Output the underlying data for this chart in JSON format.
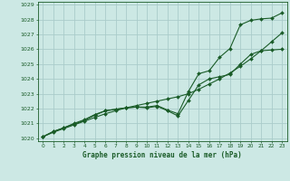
{
  "title": "Graphe pression niveau de la mer (hPa)",
  "xlim": [
    -0.5,
    23.5
  ],
  "ylim": [
    1019.8,
    1029.2
  ],
  "xticks": [
    0,
    1,
    2,
    3,
    4,
    5,
    6,
    7,
    8,
    9,
    10,
    11,
    12,
    13,
    14,
    15,
    16,
    17,
    18,
    19,
    20,
    21,
    22,
    23
  ],
  "yticks": [
    1020,
    1021,
    1022,
    1023,
    1024,
    1025,
    1026,
    1027,
    1028,
    1029
  ],
  "bg_color": "#cce8e4",
  "grid_color": "#aaccca",
  "line_color": "#1a5c28",
  "series_straight": {
    "x": [
      0,
      1,
      2,
      3,
      4,
      5,
      6,
      7,
      8,
      9,
      10,
      11,
      12,
      13,
      14,
      15,
      16,
      17,
      18,
      19,
      20,
      21,
      22,
      23
    ],
    "y": [
      1020.1,
      1020.4,
      1020.65,
      1020.9,
      1021.15,
      1021.4,
      1021.65,
      1021.85,
      1022.05,
      1022.2,
      1022.35,
      1022.5,
      1022.65,
      1022.8,
      1023.0,
      1023.3,
      1023.65,
      1024.0,
      1024.4,
      1024.85,
      1025.35,
      1025.9,
      1026.5,
      1027.1
    ]
  },
  "series_dip": {
    "x": [
      0,
      1,
      2,
      3,
      4,
      5,
      6,
      7,
      8,
      9,
      10,
      11,
      12,
      13,
      14,
      15,
      16,
      17,
      18,
      19,
      20,
      21,
      22,
      23
    ],
    "y": [
      1020.1,
      1020.45,
      1020.7,
      1020.95,
      1021.2,
      1021.55,
      1021.85,
      1021.95,
      1022.05,
      1022.1,
      1022.05,
      1022.15,
      1021.85,
      1021.5,
      1022.55,
      1023.6,
      1024.0,
      1024.15,
      1024.3,
      1025.0,
      1025.65,
      1025.9,
      1025.95,
      1026.0
    ]
  },
  "series_top": {
    "x": [
      0,
      1,
      2,
      3,
      4,
      5,
      6,
      7,
      8,
      9,
      10,
      11,
      12,
      13,
      14,
      15,
      16,
      17,
      18,
      19,
      20,
      21,
      22,
      23
    ],
    "y": [
      1020.1,
      1020.45,
      1020.7,
      1021.0,
      1021.25,
      1021.6,
      1021.85,
      1021.95,
      1022.05,
      1022.1,
      1022.1,
      1022.2,
      1021.9,
      1021.65,
      1023.15,
      1024.35,
      1024.55,
      1025.45,
      1026.05,
      1027.65,
      1027.95,
      1028.05,
      1028.1,
      1028.45
    ]
  }
}
